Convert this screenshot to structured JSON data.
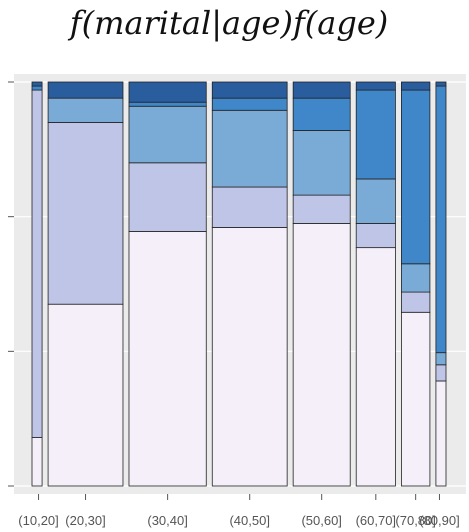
{
  "chart_data": {
    "type": "bar",
    "subtype": "mosaic",
    "title": "f(marital|age)f(age)",
    "xlabel": "",
    "ylabel": "",
    "ylim": [
      0,
      1
    ],
    "grid": true,
    "legend": "none",
    "categories": [
      "(10,20]",
      "(20,30]",
      "(30,40]",
      "(40,50]",
      "(50,60]",
      "(60,70]",
      "(70,80]",
      "(80,90]"
    ],
    "widths": [
      0.022,
      0.136,
      0.14,
      0.136,
      0.106,
      0.076,
      0.058,
      0.022
    ],
    "series": [
      {
        "name": "",
        "color": "#f4eff8",
        "values": [
          0.12,
          0.45,
          0.63,
          0.64,
          0.65,
          0.59,
          0.43,
          0.26
        ]
      },
      {
        "name": "",
        "color": "#bec5e6",
        "values": [
          0.86,
          0.45,
          0.17,
          0.1,
          0.07,
          0.06,
          0.05,
          0.04
        ]
      },
      {
        "name": "",
        "color": "#7aaad6",
        "values": [
          0.0,
          0.06,
          0.14,
          0.19,
          0.16,
          0.11,
          0.07,
          0.03
        ]
      },
      {
        "name": "",
        "color": "#3f87c8",
        "values": [
          0.01,
          0.0,
          0.01,
          0.03,
          0.08,
          0.22,
          0.43,
          0.66
        ]
      },
      {
        "name": "",
        "color": "#2a5d9e",
        "values": [
          0.01,
          0.04,
          0.05,
          0.04,
          0.04,
          0.02,
          0.02,
          0.01
        ]
      }
    ]
  }
}
